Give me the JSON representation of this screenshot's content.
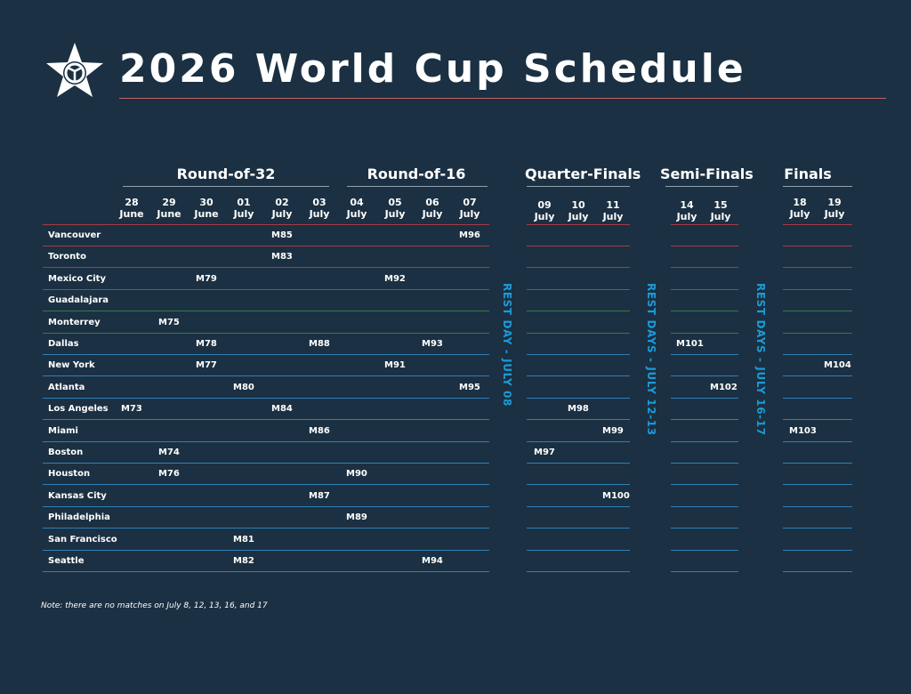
{
  "header": {
    "title": "2026 World Cup Schedule"
  },
  "stages": {
    "r32": "Round-of-32",
    "r16": "Round-of-16",
    "qf": "Quarter-Finals",
    "sf": "Semi-Finals",
    "final": "Finals"
  },
  "dates": [
    {
      "day": "28",
      "month": "June"
    },
    {
      "day": "29",
      "month": "June"
    },
    {
      "day": "30",
      "month": "June"
    },
    {
      "day": "01",
      "month": "July"
    },
    {
      "day": "02",
      "month": "July"
    },
    {
      "day": "03",
      "month": "July"
    },
    {
      "day": "04",
      "month": "July"
    },
    {
      "day": "05",
      "month": "July"
    },
    {
      "day": "06",
      "month": "July"
    },
    {
      "day": "07",
      "month": "July"
    },
    {
      "day": "09",
      "month": "July"
    },
    {
      "day": "10",
      "month": "July"
    },
    {
      "day": "11",
      "month": "July"
    },
    {
      "day": "14",
      "month": "July"
    },
    {
      "day": "15",
      "month": "July"
    },
    {
      "day": "18",
      "month": "July"
    },
    {
      "day": "19",
      "month": "July"
    }
  ],
  "cities": [
    "Vancouver",
    "Toronto",
    "Mexico City",
    "Guadalajara",
    "Monterrey",
    "Dallas",
    "New York",
    "Atlanta",
    "Los Angeles",
    "Miami",
    "Boston",
    "Houston",
    "Kansas City",
    "Philadelphia",
    "San Francisco",
    "Seattle"
  ],
  "country_colors": {
    "canada": "#a83b42",
    "mexico": "#2f7d46",
    "usa": "#2f7fb5"
  },
  "matches": [
    {
      "label": "M85",
      "city": 0,
      "date": 4
    },
    {
      "label": "M96",
      "city": 0,
      "date": 9
    },
    {
      "label": "M83",
      "city": 1,
      "date": 4
    },
    {
      "label": "M79",
      "city": 2,
      "date": 2
    },
    {
      "label": "M92",
      "city": 2,
      "date": 7
    },
    {
      "label": "M75",
      "city": 4,
      "date": 1
    },
    {
      "label": "M78",
      "city": 5,
      "date": 2
    },
    {
      "label": "M88",
      "city": 5,
      "date": 5
    },
    {
      "label": "M93",
      "city": 5,
      "date": 8
    },
    {
      "label": "M101",
      "city": 5,
      "date": 13
    },
    {
      "label": "M77",
      "city": 6,
      "date": 2
    },
    {
      "label": "M91",
      "city": 6,
      "date": 7
    },
    {
      "label": "M104",
      "city": 6,
      "date": 16
    },
    {
      "label": "M80",
      "city": 7,
      "date": 3
    },
    {
      "label": "M95",
      "city": 7,
      "date": 9
    },
    {
      "label": "M102",
      "city": 7,
      "date": 14
    },
    {
      "label": "M73",
      "city": 8,
      "date": 0
    },
    {
      "label": "M84",
      "city": 8,
      "date": 4
    },
    {
      "label": "M98",
      "city": 8,
      "date": 11
    },
    {
      "label": "M86",
      "city": 9,
      "date": 5
    },
    {
      "label": "M99",
      "city": 9,
      "date": 12
    },
    {
      "label": "M103",
      "city": 9,
      "date": 15
    },
    {
      "label": "M74",
      "city": 10,
      "date": 1
    },
    {
      "label": "M97",
      "city": 10,
      "date": 10
    },
    {
      "label": "M76",
      "city": 11,
      "date": 1
    },
    {
      "label": "M90",
      "city": 11,
      "date": 6
    },
    {
      "label": "M87",
      "city": 12,
      "date": 5
    },
    {
      "label": "M100",
      "city": 12,
      "date": 12
    },
    {
      "label": "M89",
      "city": 13,
      "date": 6
    },
    {
      "label": "M81",
      "city": 14,
      "date": 3
    },
    {
      "label": "M82",
      "city": 15,
      "date": 3
    },
    {
      "label": "M94",
      "city": 15,
      "date": 8
    }
  ],
  "rest_days": {
    "r1": "REST DAY - JULY 08",
    "r2": "REST DAYS - JULY 12-13",
    "r3": "REST DAYS - JULY 16-17"
  },
  "note": "Note: there are no matches on July 8, 12, 13, 16, and 17"
}
